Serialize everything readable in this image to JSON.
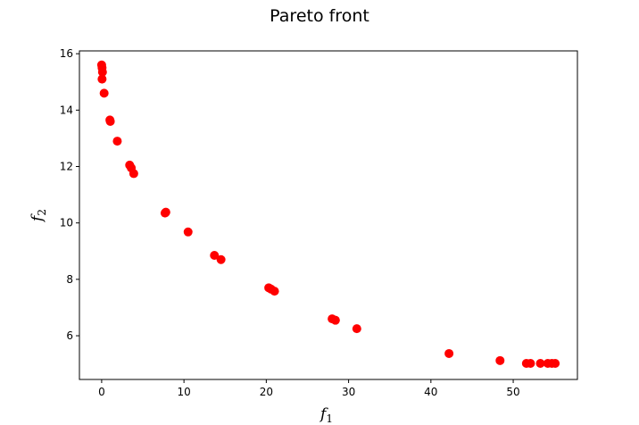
{
  "chart_data": {
    "type": "scatter",
    "title": "Pareto front",
    "xlabel": {
      "base": "f",
      "sub": "1"
    },
    "ylabel": {
      "base": "f",
      "sub": "2"
    },
    "xlim": [
      -2.7,
      57.8
    ],
    "ylim": [
      4.45,
      16.1
    ],
    "xticks": [
      0,
      10,
      20,
      30,
      40,
      50
    ],
    "yticks": [
      6,
      8,
      10,
      12,
      14,
      16
    ],
    "grid": false,
    "marker_color": "#ff0000",
    "points": [
      [
        0.0,
        15.6
      ],
      [
        0.05,
        15.5
      ],
      [
        0.1,
        15.35
      ],
      [
        0.05,
        15.1
      ],
      [
        0.3,
        14.6
      ],
      [
        1.0,
        13.65
      ],
      [
        1.05,
        13.6
      ],
      [
        1.9,
        12.9
      ],
      [
        3.4,
        12.05
      ],
      [
        3.6,
        11.95
      ],
      [
        3.9,
        11.75
      ],
      [
        7.7,
        10.35
      ],
      [
        7.8,
        10.38
      ],
      [
        10.5,
        9.68
      ],
      [
        13.7,
        8.85
      ],
      [
        14.5,
        8.7
      ],
      [
        20.3,
        7.7
      ],
      [
        20.6,
        7.65
      ],
      [
        21.0,
        7.58
      ],
      [
        28.0,
        6.6
      ],
      [
        28.4,
        6.55
      ],
      [
        31.0,
        6.25
      ],
      [
        42.2,
        5.37
      ],
      [
        48.4,
        5.12
      ],
      [
        51.6,
        5.02
      ],
      [
        52.1,
        5.02
      ],
      [
        53.3,
        5.02
      ],
      [
        54.2,
        5.02
      ],
      [
        54.7,
        5.02
      ],
      [
        55.1,
        5.02
      ]
    ]
  }
}
